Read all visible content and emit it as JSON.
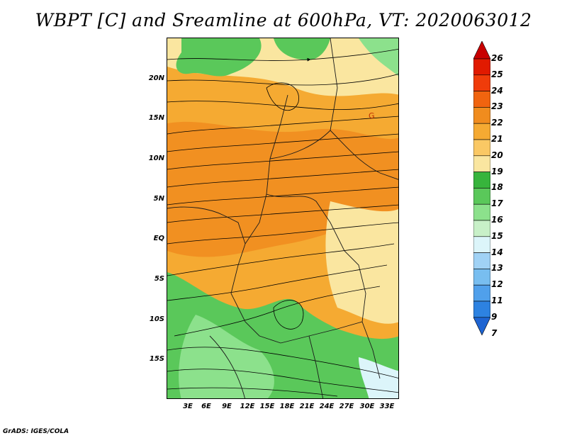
{
  "title": "WBPT [C] and Sreamline at 600hPa, VT: 2020063012",
  "footer": "GrADS: IGES/COLA",
  "map": {
    "lat_labels": [
      "20N",
      "15N",
      "10N",
      "5N",
      "EQ",
      "5S",
      "10S",
      "15S"
    ],
    "lon_labels": [
      "3E",
      "6E",
      "9E",
      "12E",
      "15E",
      "18E",
      "21E",
      "24E",
      "27E",
      "30E",
      "33E"
    ],
    "annotation_symbol": "G"
  },
  "colorbar": {
    "labels": [
      "26",
      "25",
      "24",
      "23",
      "22",
      "21",
      "20",
      "19",
      "18",
      "17",
      "16",
      "15",
      "14",
      "13",
      "12",
      "11",
      "9",
      "7"
    ],
    "colors": [
      "#c80000",
      "#e11a00",
      "#f03c0a",
      "#f0640f",
      "#f08c1e",
      "#f5aa32",
      "#fac864",
      "#fae6a0",
      "#37b43c",
      "#5ac85a",
      "#8ce18c",
      "#c8f0c8",
      "#dcf5fa",
      "#a0d2f5",
      "#78bef0",
      "#50a0eb",
      "#2d82e1",
      "#1e64d2"
    ]
  },
  "chart_data": {
    "type": "heatmap",
    "title": "WBPT [C] and Sreamline at 600hPa, VT: 2020063012",
    "variable": "Wet-bulb potential temperature [C] with streamlines at 600hPa",
    "valid_time": "2020063012",
    "x_ticks": [
      "3E",
      "6E",
      "9E",
      "12E",
      "15E",
      "18E",
      "21E",
      "24E",
      "27E",
      "30E",
      "33E"
    ],
    "y_ticks": [
      "20N",
      "15N",
      "10N",
      "5N",
      "EQ",
      "5S",
      "10S",
      "15S"
    ],
    "colorbar_levels": [
      7,
      9,
      11,
      12,
      13,
      14,
      15,
      16,
      17,
      18,
      19,
      20,
      21,
      22,
      23,
      24,
      25,
      26
    ]
  }
}
